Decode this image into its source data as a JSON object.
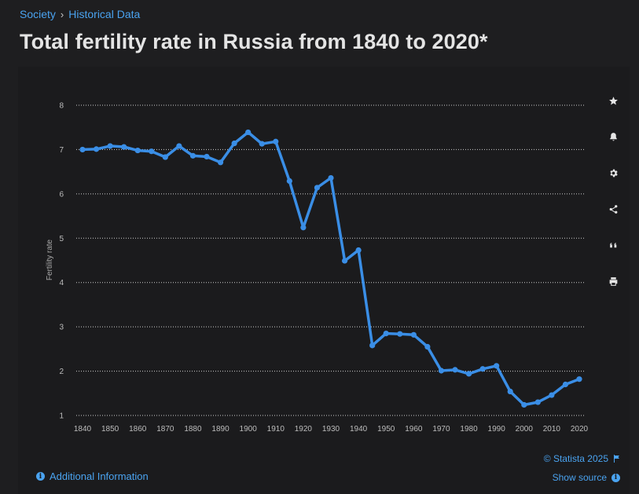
{
  "breadcrumb": {
    "parent": "Society",
    "separator": "›",
    "current": "Historical Data"
  },
  "title": "Total fertility rate in Russia from 1840 to 2020*",
  "tools": [
    "star-icon",
    "bell-icon",
    "gear-icon",
    "share-icon",
    "quote-icon",
    "print-icon"
  ],
  "footer": {
    "additional_info": "Additional Information",
    "copyright": "© Statista 2025",
    "show_source": "Show source"
  },
  "colors": {
    "accent": "#4aa3f0",
    "line": "#3a8ee6",
    "grid": "#cfcfcf"
  },
  "chart_data": {
    "type": "line",
    "title": "",
    "xlabel": "",
    "ylabel": "Fertility rate",
    "ylim": [
      1,
      8
    ],
    "yticks": [
      1,
      2,
      3,
      4,
      5,
      6,
      7,
      8
    ],
    "xlim": [
      1840,
      2020
    ],
    "xticks": [
      1840,
      1850,
      1860,
      1870,
      1880,
      1890,
      1900,
      1910,
      1920,
      1930,
      1940,
      1950,
      1960,
      1970,
      1980,
      1990,
      2000,
      2010,
      2020
    ],
    "grid": "horizontal-dotted",
    "series": [
      {
        "x": [
          1840,
          1845,
          1850,
          1855,
          1860,
          1865,
          1870,
          1875,
          1880,
          1885,
          1890,
          1895,
          1900,
          1905,
          1910,
          1915,
          1920,
          1925,
          1930,
          1935,
          1940,
          1945,
          1950,
          1955,
          1960,
          1965,
          1970,
          1975,
          1980,
          1985,
          1990,
          1995,
          2000,
          2005,
          2010,
          2015,
          2020
        ],
        "values": [
          7.0,
          7.01,
          7.08,
          7.06,
          6.98,
          6.96,
          6.83,
          7.08,
          6.86,
          6.84,
          6.71,
          7.14,
          7.39,
          7.13,
          7.18,
          6.29,
          5.24,
          6.14,
          6.36,
          4.49,
          4.73,
          2.58,
          2.85,
          2.84,
          2.82,
          2.55,
          2.01,
          2.03,
          1.94,
          2.05,
          2.12,
          1.54,
          1.24,
          1.3,
          1.46,
          1.7,
          1.82
        ]
      }
    ]
  }
}
